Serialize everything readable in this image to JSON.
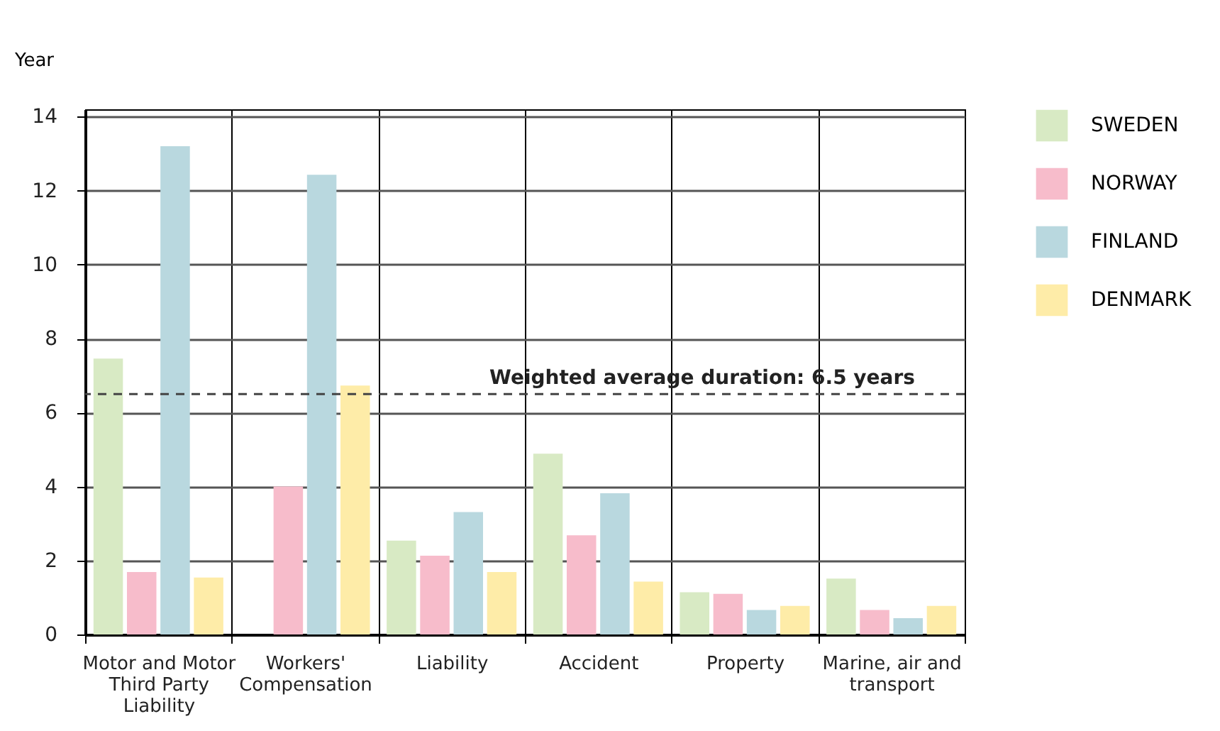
{
  "chart_data": {
    "type": "bar",
    "ylabel": "Year",
    "categories": [
      "Motor and Motor Third Party Liability",
      "Workers' Compensation",
      "Liability",
      "Accident",
      "Property",
      "Marine, air and transport"
    ],
    "series": [
      {
        "name": "SWEDEN",
        "color": "#d8eac4",
        "values": [
          7.46,
          null,
          2.54,
          4.89,
          1.14,
          1.51
        ]
      },
      {
        "name": "NORWAY",
        "color": "#f7bccb",
        "values": [
          1.69,
          4.0,
          2.13,
          2.68,
          1.1,
          0.66
        ]
      },
      {
        "name": "FINLAND",
        "color": "#b9d8df",
        "values": [
          13.2,
          12.43,
          3.31,
          3.82,
          0.66,
          0.44
        ]
      },
      {
        "name": "DENMARK",
        "color": "#feeca8",
        "values": [
          1.54,
          6.73,
          1.69,
          1.43,
          0.77,
          0.77
        ]
      }
    ],
    "ylim": [
      0,
      14.2
    ],
    "yticks": [
      0,
      2,
      4,
      6,
      8,
      10,
      12,
      14
    ],
    "grid": true,
    "legend": "top right",
    "ref_lines": [
      {
        "axis": "y",
        "value": 6.5,
        "label": "Weighted average duration: 6.5 years",
        "line_style": "dashed",
        "color": "#444444"
      }
    ]
  }
}
